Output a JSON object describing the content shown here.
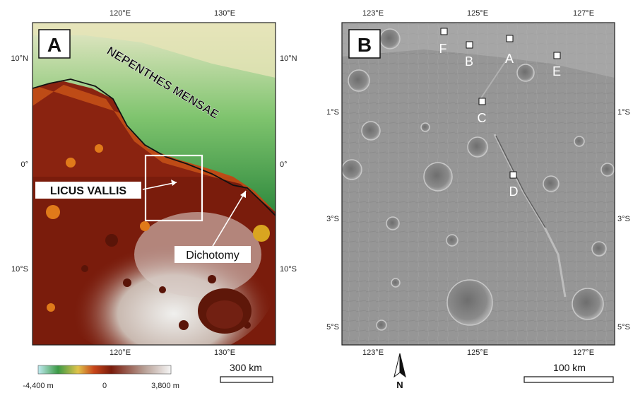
{
  "panel_a": {
    "panel_label": "A",
    "top_ticks": [
      "120°E",
      "130°E"
    ],
    "bottom_ticks": [
      "120°E",
      "130°E"
    ],
    "left_ticks": [
      "10°N",
      "0°",
      "10°S"
    ],
    "right_ticks": [
      "10°N",
      "0°",
      "10°S"
    ],
    "region_label": "NEPENTHES MENSAE",
    "callout_valley": "LICUS VALLIS",
    "callout_boundary": "Dichotomy",
    "elevation_min": "-4,400 m",
    "elevation_mid": "0",
    "elevation_max": "3,800 m",
    "scale_text": "300 km",
    "colors": {
      "deep_red": "#7a1c0c",
      "red": "#b33015",
      "orange": "#e07a1a",
      "yellow": "#e8d27a",
      "green": "#3e9a45",
      "light": "#e8e8d8",
      "white_high": "#f2f2f2"
    }
  },
  "panel_b": {
    "panel_label": "B",
    "top_ticks": [
      "123°E",
      "125°E",
      "127°E"
    ],
    "bottom_ticks": [
      "123°E",
      "125°E",
      "127°E"
    ],
    "left_ticks": [
      "1°S",
      "3°S",
      "5°S"
    ],
    "right_ticks": [
      "1°S",
      "3°S",
      "5°S"
    ],
    "sites": [
      "F",
      "B",
      "A",
      "E",
      "C",
      "D"
    ],
    "north_label": "N",
    "scale_text": "100 km"
  }
}
